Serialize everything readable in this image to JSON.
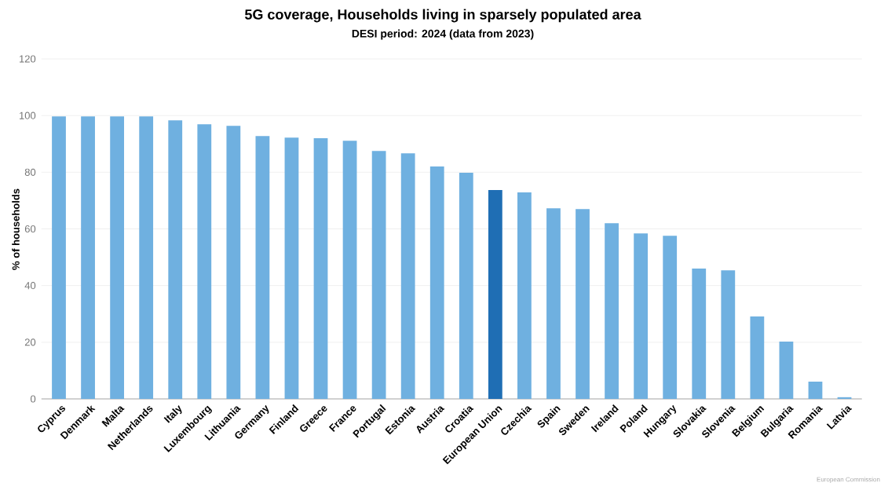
{
  "chart_data": {
    "type": "bar",
    "title": "5G coverage, Households living in sparsely populated area",
    "subtitle": "DESI period: 2024 (data from 2023)",
    "ylabel": "% of households",
    "categories": [
      "Cyprus",
      "Denmark",
      "Malta",
      "Netherlands",
      "Italy",
      "Luxembourg",
      "Lithuania",
      "Germany",
      "Finland",
      "Greece",
      "France",
      "Portugal",
      "Estonia",
      "Austria",
      "Croatia",
      "European Union",
      "Czechia",
      "Spain",
      "Sweden",
      "Ireland",
      "Poland",
      "Hungary",
      "Slovakia",
      "Slovenia",
      "Belgium",
      "Bulgaria",
      "Romania",
      "Latvia"
    ],
    "values": [
      99.7,
      99.7,
      99.7,
      99.7,
      98.3,
      96.9,
      96.4,
      92.8,
      92.2,
      92,
      91.1,
      87.5,
      86.7,
      82,
      79.8,
      73.7,
      72.9,
      67.3,
      67,
      62,
      58.4,
      57.6,
      46,
      45.4,
      29.1,
      20.2,
      6.1,
      0.6
    ],
    "colors": [
      "#6fb0e0",
      "#6fb0e0",
      "#6fb0e0",
      "#6fb0e0",
      "#6fb0e0",
      "#6fb0e0",
      "#6fb0e0",
      "#6fb0e0",
      "#6fb0e0",
      "#6fb0e0",
      "#6fb0e0",
      "#6fb0e0",
      "#6fb0e0",
      "#6fb0e0",
      "#6fb0e0",
      "#1f6eb4",
      "#6fb0e0",
      "#6fb0e0",
      "#6fb0e0",
      "#6fb0e0",
      "#6fb0e0",
      "#6fb0e0",
      "#6fb0e0",
      "#6fb0e0",
      "#6fb0e0",
      "#6fb0e0",
      "#6fb0e0",
      "#6fb0e0"
    ],
    "ylim": [
      0,
      120
    ],
    "yticks": [
      0,
      20,
      40,
      60,
      80,
      100,
      120
    ],
    "grid": "y",
    "annotations": [
      "European Commission"
    ]
  }
}
